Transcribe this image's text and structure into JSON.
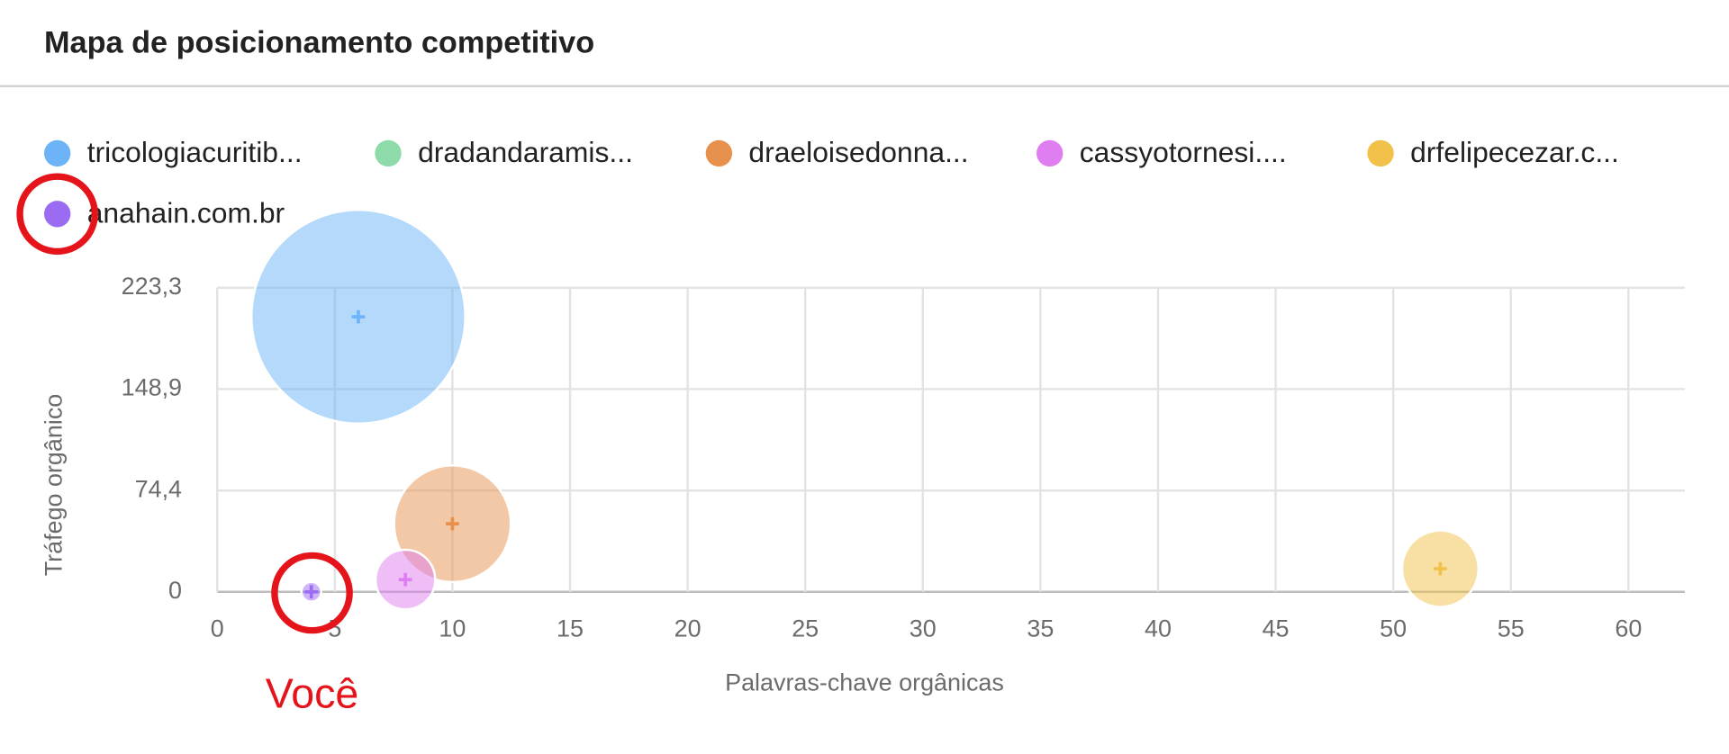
{
  "chart_data": {
    "type": "bubble",
    "title": "Mapa de posicionamento competitivo",
    "x_label": "Palavras-chave orgânicas",
    "y_label": "Tráfego orgânico",
    "annotation": "Você",
    "xlim": [
      0,
      62.4
    ],
    "xticks": [
      0,
      5,
      10,
      15,
      20,
      25,
      30,
      35,
      40,
      45,
      50,
      55,
      60
    ],
    "ylim": [
      0,
      223.3
    ],
    "yticks": [
      0,
      {
        "value": 74.4,
        "label": "74,4"
      },
      {
        "value": 148.9,
        "label": "148,9"
      },
      {
        "value": 223.3,
        "label": "223,3"
      }
    ],
    "grid": true,
    "series": [
      {
        "name": "tricologiacuritib...",
        "color": "#6cb4f7",
        "x": [
          6
        ],
        "values": [
          202
        ],
        "sizes": [
          94
        ]
      },
      {
        "name": "dradandaramis...",
        "color": "#8ddba8",
        "x": [],
        "values": [],
        "sizes": []
      },
      {
        "name": "draeloisedonna...",
        "color": "#e8914f",
        "x": [
          10
        ],
        "values": [
          50
        ],
        "sizes": [
          28
        ]
      },
      {
        "name": "cassyotornesi....",
        "color": "#df7ef0",
        "x": [
          8
        ],
        "values": [
          9
        ],
        "sizes": [
          7.3
        ]
      },
      {
        "name": "drfelipecezar.c...",
        "color": "#f1c14a",
        "x": [
          52
        ],
        "values": [
          17
        ],
        "sizes": [
          12
        ]
      },
      {
        "name": "anahain.com.br",
        "color": "#9b6cf2",
        "x": [
          4
        ],
        "values": [
          0
        ],
        "sizes": [
          0.8
        ]
      }
    ]
  }
}
